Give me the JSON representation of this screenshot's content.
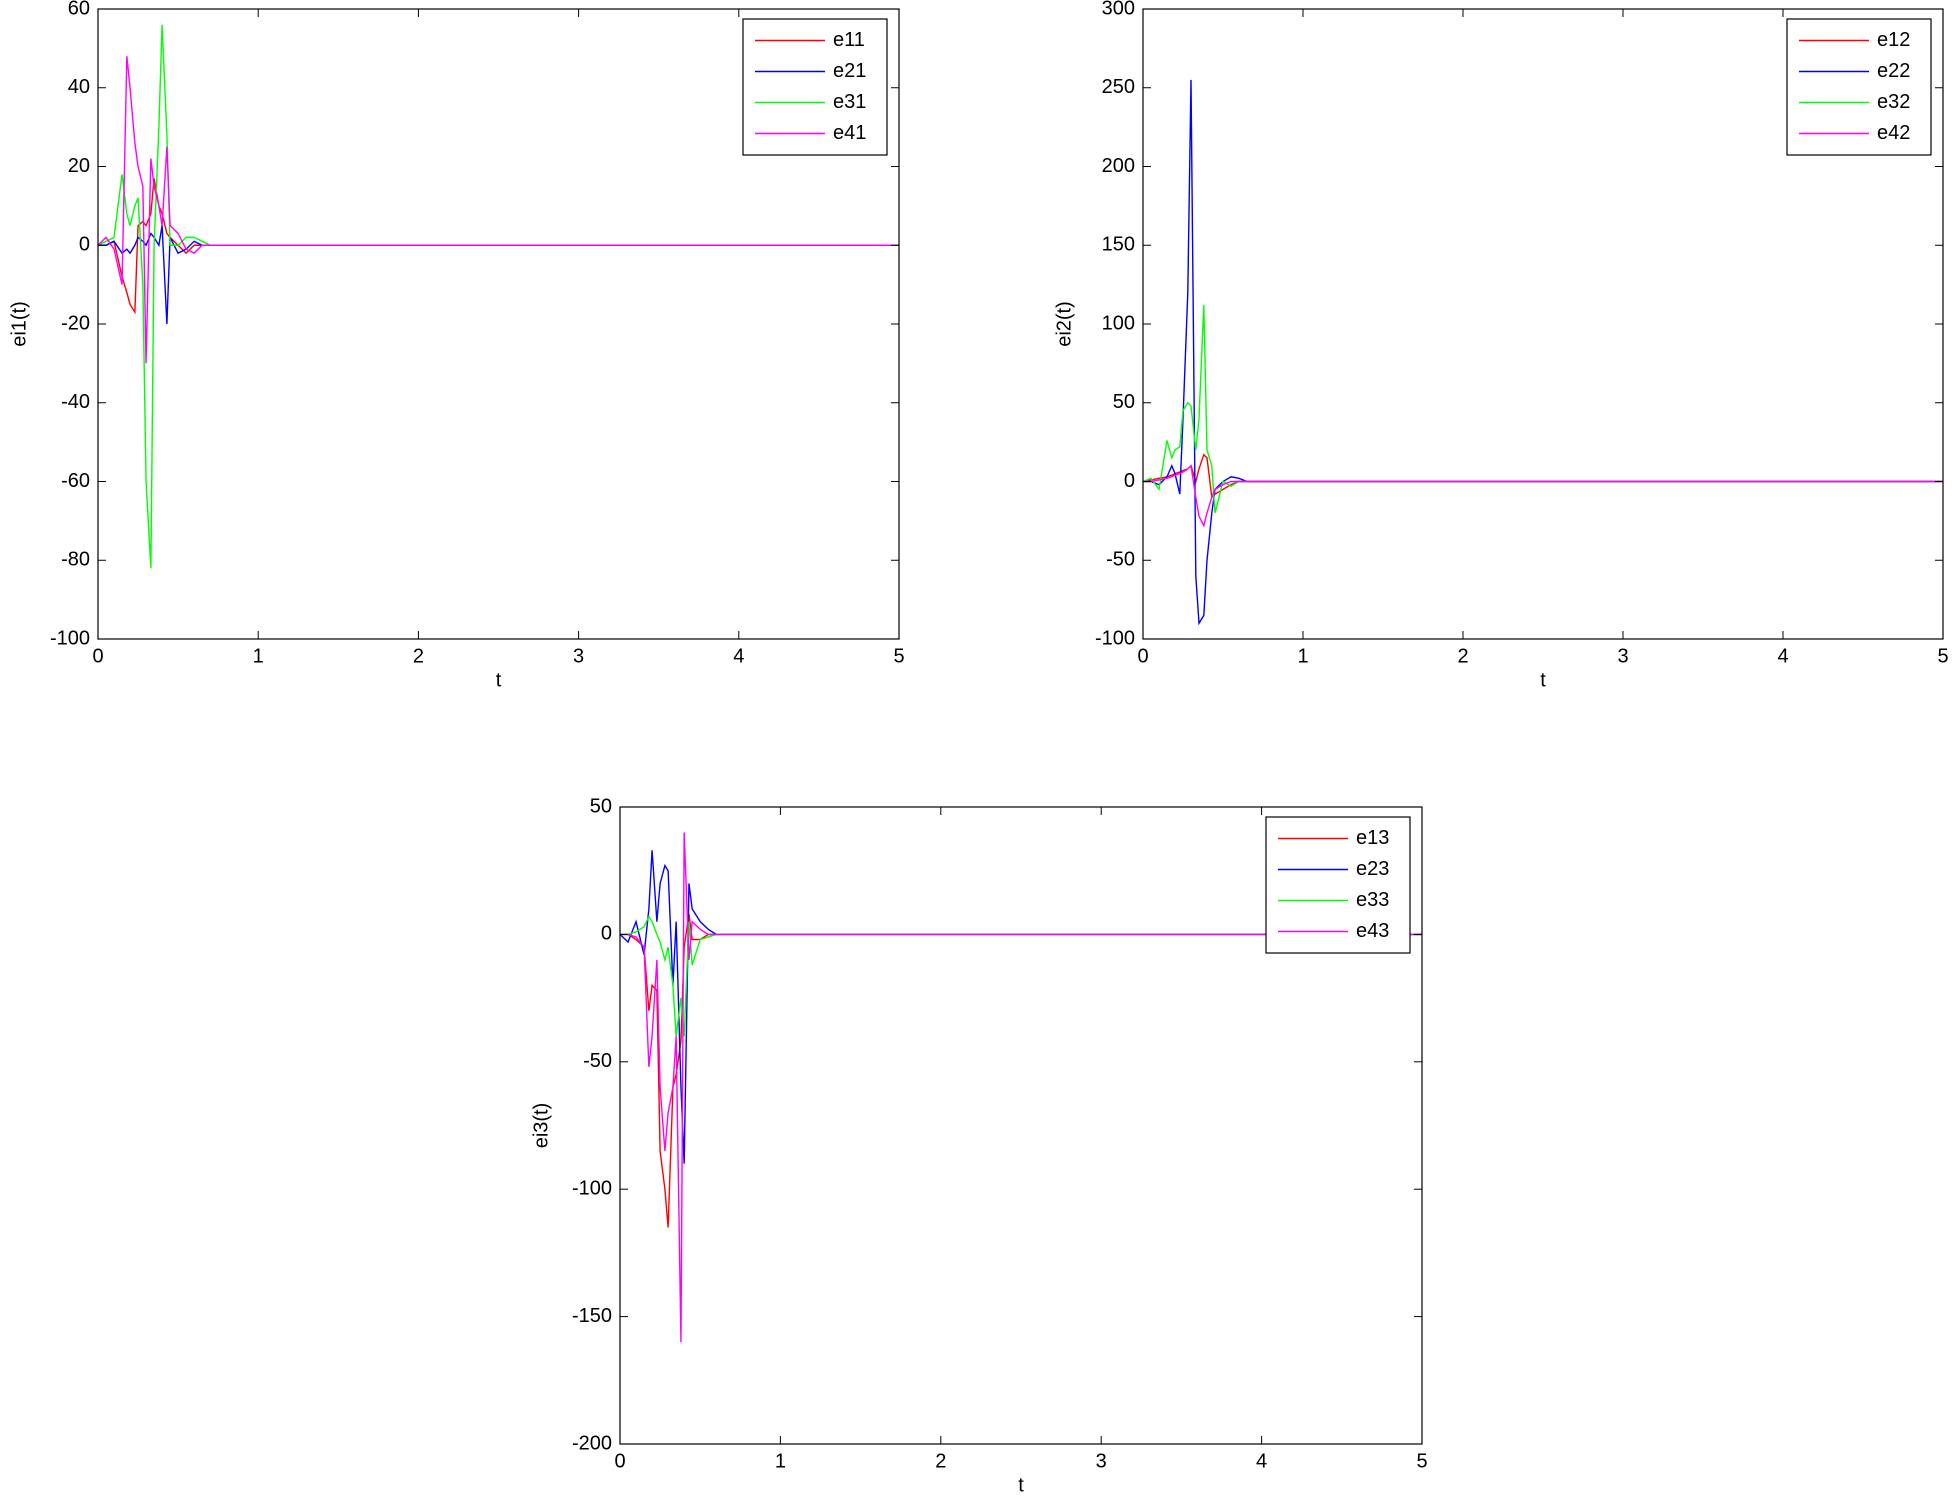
{
  "chart_data": [
    {
      "type": "line",
      "xlabel": "t",
      "ylabel": "ei1(t)",
      "legend": "northeast",
      "x": [
        0,
        0.05,
        0.1,
        0.15,
        0.18,
        0.2,
        0.23,
        0.25,
        0.28,
        0.3,
        0.33,
        0.35,
        0.38,
        0.4,
        0.43,
        0.45,
        0.5,
        0.55,
        0.6,
        0.65,
        0.7,
        0.8,
        5
      ],
      "series": [
        {
          "name": "e11",
          "color": "#ff0000",
          "values": [
            0,
            0,
            1,
            -8,
            -12,
            -15,
            -17,
            5,
            6,
            5,
            8,
            17,
            10,
            8,
            3,
            2,
            0,
            -2,
            0,
            0,
            0,
            0,
            0
          ]
        },
        {
          "name": "e21",
          "color": "#0000ff",
          "values": [
            0,
            0,
            1,
            -2,
            -1,
            -2,
            0,
            2,
            1,
            0,
            3,
            2,
            0,
            5,
            -20,
            2,
            -2,
            -1,
            1,
            0,
            0,
            0,
            0
          ]
        },
        {
          "name": "e31",
          "color": "#00ff00",
          "values": [
            0,
            1,
            2,
            18,
            8,
            5,
            10,
            12,
            -10,
            -60,
            -82,
            0,
            30,
            56,
            28,
            0,
            0,
            2,
            2,
            1,
            0,
            0,
            0
          ]
        },
        {
          "name": "e41",
          "color": "#ff00ff",
          "values": [
            0,
            2,
            -1,
            -10,
            48,
            40,
            26,
            20,
            15,
            -30,
            22,
            15,
            10,
            5,
            25,
            5,
            3,
            -1,
            -2,
            0,
            0,
            0,
            0
          ]
        }
      ],
      "xlim": [
        0,
        5
      ],
      "xticks": [
        0,
        1,
        2,
        3,
        4,
        5
      ],
      "ylim": [
        -100,
        60
      ],
      "yticks": [
        -100,
        -80,
        -60,
        -40,
        -20,
        0,
        20,
        40,
        60
      ]
    },
    {
      "type": "line",
      "xlabel": "t",
      "ylabel": "ei2(t)",
      "legend": "northeast",
      "x": [
        0,
        0.05,
        0.1,
        0.15,
        0.18,
        0.2,
        0.23,
        0.25,
        0.28,
        0.3,
        0.33,
        0.35,
        0.38,
        0.4,
        0.43,
        0.45,
        0.5,
        0.55,
        0.6,
        0.65,
        0.7,
        0.8,
        5
      ],
      "series": [
        {
          "name": "e12",
          "color": "#ff0000",
          "values": [
            0,
            1,
            2,
            3,
            4,
            5,
            6,
            7,
            8,
            10,
            0,
            8,
            17,
            15,
            -10,
            -8,
            -5,
            -2,
            0,
            0,
            0,
            0,
            0
          ]
        },
        {
          "name": "e22",
          "color": "#0000ff",
          "values": [
            0,
            0,
            -2,
            3,
            10,
            5,
            -8,
            40,
            120,
            255,
            -60,
            -90,
            -85,
            -50,
            -20,
            -5,
            0,
            3,
            2,
            0,
            0,
            0,
            0
          ]
        },
        {
          "name": "e32",
          "color": "#00ff00",
          "values": [
            0,
            2,
            -5,
            26,
            15,
            20,
            22,
            45,
            50,
            48,
            20,
            40,
            112,
            20,
            10,
            -20,
            0,
            -3,
            0,
            0,
            0,
            0,
            0
          ]
        },
        {
          "name": "e42",
          "color": "#ff00ff",
          "values": [
            0,
            0,
            1,
            2,
            3,
            4,
            5,
            6,
            8,
            10,
            -10,
            -22,
            -28,
            -20,
            -10,
            -5,
            -2,
            0,
            0,
            0,
            0,
            0,
            0
          ]
        }
      ],
      "xlim": [
        0,
        5
      ],
      "xticks": [
        0,
        1,
        2,
        3,
        4,
        5
      ],
      "ylim": [
        -100,
        300
      ],
      "yticks": [
        -100,
        -50,
        0,
        50,
        100,
        150,
        200,
        250,
        300
      ]
    },
    {
      "type": "line",
      "xlabel": "t",
      "ylabel": "ei3(t)",
      "legend": "northeast",
      "x": [
        0,
        0.05,
        0.1,
        0.15,
        0.18,
        0.2,
        0.23,
        0.25,
        0.28,
        0.3,
        0.33,
        0.35,
        0.38,
        0.4,
        0.43,
        0.45,
        0.5,
        0.55,
        0.6,
        0.65,
        0.7,
        0.8,
        5
      ],
      "series": [
        {
          "name": "e13",
          "color": "#ff0000",
          "values": [
            0,
            0,
            -2,
            -5,
            -30,
            -20,
            -22,
            -85,
            -100,
            -115,
            -60,
            -55,
            -42,
            -5,
            8,
            -2,
            -2,
            0,
            0,
            0,
            0,
            0,
            0
          ]
        },
        {
          "name": "e23",
          "color": "#0000ff",
          "values": [
            0,
            -3,
            5,
            -8,
            10,
            33,
            5,
            20,
            27,
            25,
            -20,
            5,
            -60,
            -90,
            20,
            10,
            5,
            2,
            0,
            0,
            0,
            0,
            0
          ]
        },
        {
          "name": "e33",
          "color": "#00ff00",
          "values": [
            0,
            0,
            1,
            3,
            7,
            5,
            0,
            -3,
            -10,
            -5,
            -20,
            -40,
            -25,
            -40,
            5,
            -12,
            -2,
            -1,
            0,
            0,
            0,
            0,
            0
          ]
        },
        {
          "name": "e43",
          "color": "#ff00ff",
          "values": [
            0,
            0,
            -1,
            -5,
            -52,
            -40,
            -10,
            -60,
            -85,
            -70,
            -60,
            -40,
            -160,
            40,
            -10,
            5,
            2,
            0,
            0,
            0,
            0,
            0,
            0
          ]
        }
      ],
      "xlim": [
        0,
        5
      ],
      "xticks": [
        0,
        1,
        2,
        3,
        4,
        5
      ],
      "ylim": [
        -200,
        50
      ],
      "yticks": [
        -200,
        -150,
        -100,
        -50,
        0,
        50
      ]
    }
  ]
}
